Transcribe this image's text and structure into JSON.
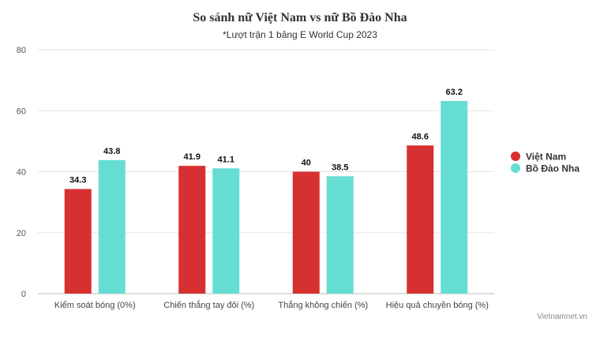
{
  "chart_data": {
    "type": "bar",
    "title": "So sánh nữ Việt Nam vs nữ Bồ Đào Nha",
    "subtitle": "*Lượt trận 1 bảng E World Cup 2023",
    "categories": [
      "Kiểm soát bóng (0%)",
      "Chiến thắng tay đôi (%)",
      "Thắng không chiến (%)",
      "Hiệu quả chuyền bóng (%)"
    ],
    "series": [
      {
        "name": "Việt Nam",
        "color": "#d63030",
        "values": [
          34.3,
          41.9,
          40,
          48.6
        ]
      },
      {
        "name": "Bồ Đào Nha",
        "color": "#66ddd3",
        "values": [
          43.8,
          41.1,
          38.5,
          63.2
        ]
      }
    ],
    "ylim": [
      0,
      80
    ],
    "yticks": [
      0,
      20,
      40,
      60,
      80
    ],
    "grid": true,
    "legend": "right",
    "credit": "Vietnamnet.vn"
  }
}
